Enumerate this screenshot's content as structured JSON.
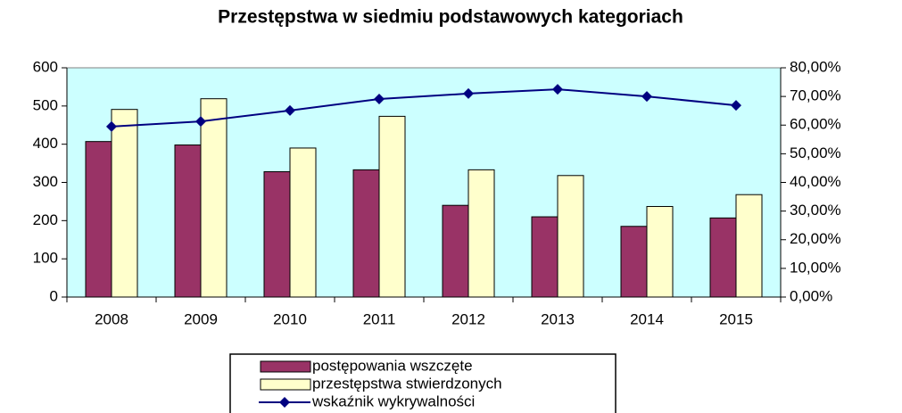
{
  "chart_data": {
    "type": "bar",
    "title": "Przestępstwa w siedmiu podstawowych kategoriach",
    "categories": [
      "2008",
      "2009",
      "2010",
      "2011",
      "2012",
      "2013",
      "2014",
      "2015"
    ],
    "series": [
      {
        "name": "postępowania wszczęte",
        "color": "#993366",
        "type": "bar",
        "values": [
          407,
          398,
          328,
          333,
          240,
          210,
          185,
          207
        ]
      },
      {
        "name": "przestępstwa stwierdzonych",
        "color": "#ffffcc",
        "type": "bar",
        "values": [
          491,
          519,
          390,
          473,
          333,
          318,
          237,
          268
        ]
      },
      {
        "name": "wskaźnik wykrywalności",
        "color": "#000080",
        "type": "line",
        "axis": "y2",
        "values": [
          59.5,
          61.3,
          65.1,
          69.1,
          71.0,
          72.5,
          70.0,
          66.9
        ]
      }
    ],
    "ylim": [
      0,
      600
    ],
    "yticks": [
      0,
      100,
      200,
      300,
      400,
      500,
      600
    ],
    "y2lim": [
      0,
      80
    ],
    "y2ticks": [
      {
        "value": 0,
        "label": "0,00%"
      },
      {
        "value": 10,
        "label": "10,00%"
      },
      {
        "value": 20,
        "label": "20,00%"
      },
      {
        "value": 30,
        "label": "30,00%"
      },
      {
        "value": 40,
        "label": "40,00%"
      },
      {
        "value": 50,
        "label": "50,00%"
      },
      {
        "value": 60,
        "label": "60,00%"
      },
      {
        "value": 70,
        "label": "70,00%"
      },
      {
        "value": 80,
        "label": "80,00%"
      }
    ],
    "plot_background": "#ccffff",
    "legend": "bottom"
  }
}
